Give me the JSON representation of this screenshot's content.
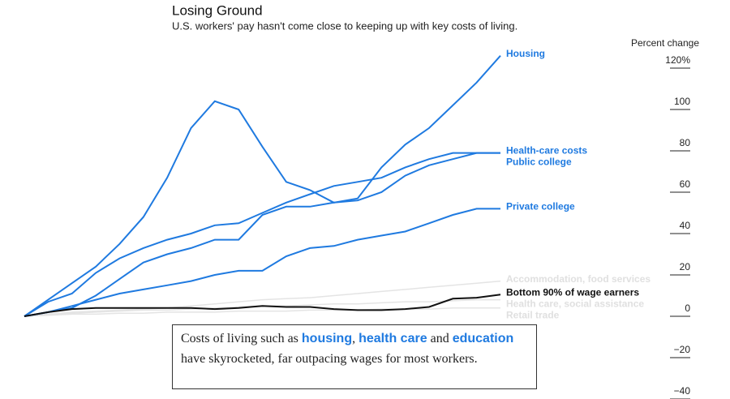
{
  "chart_data": {
    "type": "line",
    "title": "Losing Ground",
    "subtitle": "U.S. workers' pay hasn't come close to keeping up with key costs of living.",
    "y_axis_label": "Percent change",
    "ylim": [
      -40,
      120
    ],
    "yticks": [
      {
        "value": 120,
        "label": "120%"
      },
      100,
      80,
      60,
      40,
      20,
      0,
      {
        "value": -20,
        "label": "−20"
      },
      {
        "value": -40,
        "label": "−40"
      }
    ],
    "series": [
      {
        "name": "Accommodation, food services",
        "color": "#e4e4e4",
        "values": [
          0,
          1,
          2,
          2.5,
          3,
          3.5,
          4,
          5,
          6,
          7,
          8,
          8.5,
          9,
          10,
          11,
          12,
          13,
          14,
          15,
          16,
          17
        ]
      },
      {
        "name": "Health care, social assistance",
        "color": "#e4e4e4",
        "values": [
          0,
          1,
          1.5,
          2,
          2.5,
          3,
          3,
          3.5,
          4,
          4.5,
          5,
          5,
          5.5,
          6,
          6,
          6.5,
          7,
          7,
          7.5,
          8,
          8
        ]
      },
      {
        "name": "Retail trade",
        "color": "#e4e4e4",
        "values": [
          0,
          0.5,
          1,
          1,
          1.5,
          1.5,
          2,
          2,
          2,
          2.5,
          2.5,
          2.5,
          3,
          3,
          3,
          3.5,
          3.5,
          3.5,
          4,
          4,
          4
        ]
      },
      {
        "name": "Housing",
        "color": "#1f7ae0",
        "values": [
          0,
          8,
          16,
          24,
          35,
          48,
          67,
          91,
          104,
          100,
          82,
          65,
          61,
          55,
          57,
          72,
          83,
          91,
          102,
          113,
          126
        ]
      },
      {
        "name": "Health-care costs",
        "color": "#1f7ae0",
        "values": [
          0,
          7,
          11,
          21,
          28,
          33,
          37,
          40,
          44,
          45,
          50,
          55,
          59,
          63,
          65,
          67,
          72,
          76,
          79,
          79,
          79
        ]
      },
      {
        "name": "Public college",
        "color": "#1f7ae0",
        "values": [
          0,
          2,
          4,
          10,
          18,
          26,
          30,
          33,
          37,
          37,
          49,
          53,
          53,
          55,
          56,
          60,
          68,
          73,
          76,
          79,
          79
        ]
      },
      {
        "name": "Private college",
        "color": "#1f7ae0",
        "values": [
          0,
          2,
          5,
          8,
          11,
          13,
          15,
          17,
          20,
          22,
          22,
          29,
          33,
          34,
          37,
          39,
          41,
          45,
          49,
          52,
          52
        ]
      },
      {
        "name": "Bottom 90% of wage earners",
        "color": "#111111",
        "values": [
          0,
          2,
          3.5,
          4,
          4,
          4,
          4,
          4,
          3.5,
          4,
          5,
          4.5,
          4.5,
          3.5,
          3,
          3,
          3.5,
          4.5,
          8.5,
          9,
          10.5
        ]
      }
    ],
    "annotation": [
      "Costs of living such as ",
      "housing",
      ", ",
      "health care",
      " and ",
      "education",
      " have skyrocketed, far outpacing wages for most workers."
    ]
  }
}
